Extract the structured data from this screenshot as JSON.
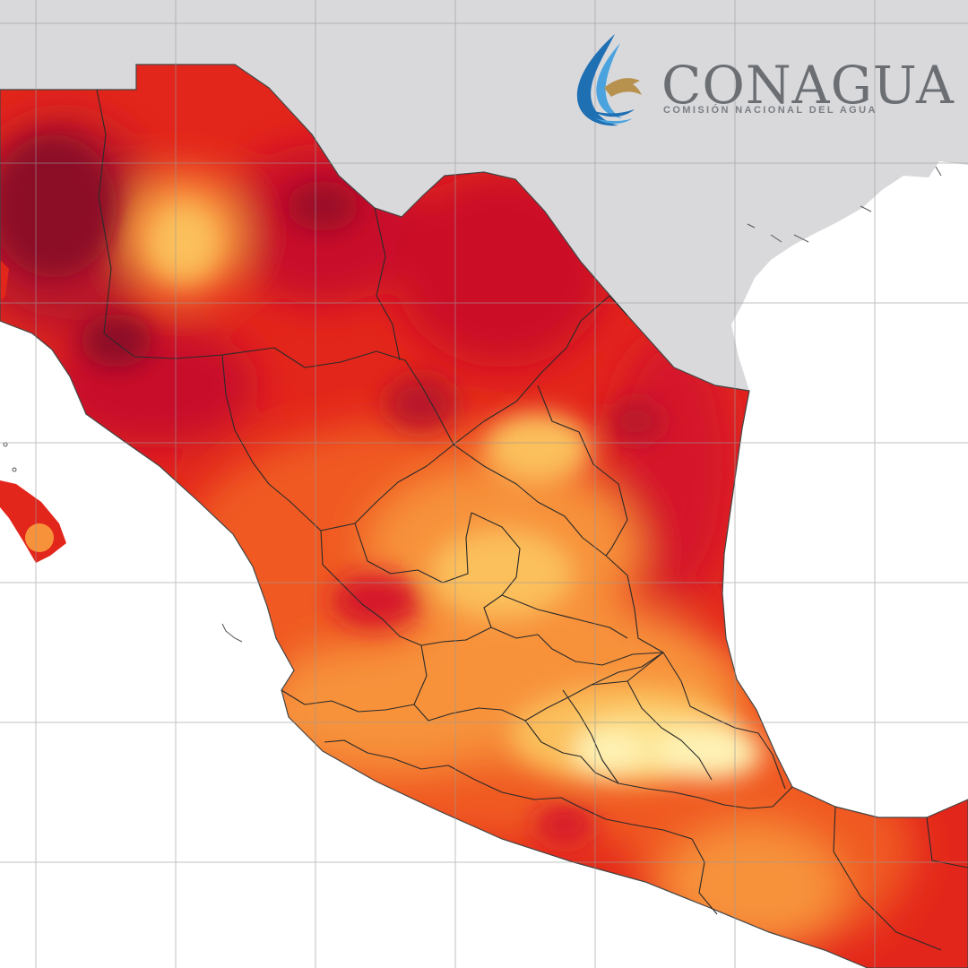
{
  "brand": {
    "name": "CONAGUA",
    "subtitle": "Comisión Nacional del Agua",
    "logo_icon": "conagua-water-bird-icon",
    "colors": {
      "wordmark": "#6b6f73",
      "wave_blue": "#1f6fb3",
      "bird_gold": "#b7924f"
    }
  },
  "map": {
    "region": "Mexico",
    "variable_shown_by_color": "temperature",
    "legend": "",
    "colors": {
      "land_outside": "#d9d9dc",
      "ocean": "#ffffff",
      "grid": "#9a9a9a",
      "boundaries": "#2a2a2a",
      "scale_hottest": "#8c0d26",
      "scale_very_hot": "#c8102a",
      "scale_hot": "#e3261b",
      "scale_warm": "#f05a24",
      "scale_mild": "#f7923a",
      "scale_cool": "#fbbf5c",
      "scale_coolest": "#fef3b5"
    }
  }
}
